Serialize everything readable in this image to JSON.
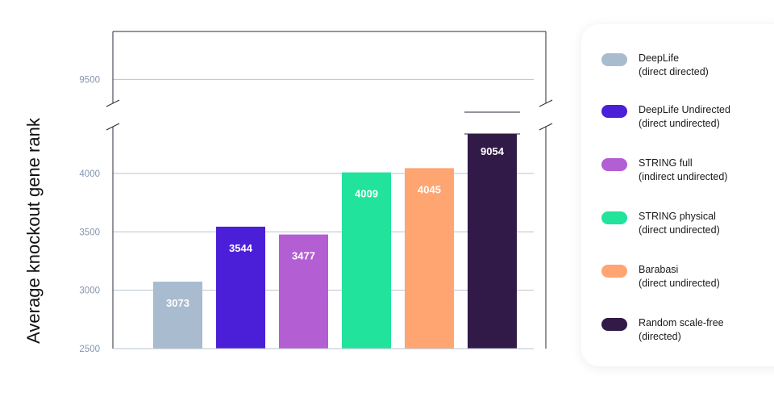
{
  "chart_data": {
    "type": "bar",
    "ylabel": "Average knockout gene rank",
    "y_ticks": [
      2500,
      3000,
      3500,
      4000,
      9500
    ],
    "ylim_lower": [
      2500,
      4400
    ],
    "ylim_upper": [
      9300,
      9900
    ],
    "broken_axis": true,
    "grid": true,
    "legend_position": "right",
    "categories": [
      "DeepLife",
      "DeepLife Undirected",
      "STRING full",
      "STRING physical",
      "Barabasi",
      "Random scale-free"
    ],
    "values": [
      3073,
      3544,
      3477,
      4009,
      4045,
      9054
    ],
    "value_labels": [
      "3073",
      "3544",
      "3477",
      "4009",
      "4045",
      "9054"
    ],
    "colors": [
      "#a9bbcf",
      "#4b1fd8",
      "#b35ed3",
      "#22e39c",
      "#ffa571",
      "#311a48"
    ]
  },
  "legend": [
    {
      "name": "DeepLife",
      "subtitle": "(direct directed)",
      "color": "#a9bbcf"
    },
    {
      "name": "DeepLife Undirected",
      "subtitle": "(direct undirected)",
      "color": "#4b1fd8"
    },
    {
      "name": "STRING full",
      "subtitle": "(indirect undirected)",
      "color": "#b35ed3"
    },
    {
      "name": "STRING physical",
      "subtitle": "(direct undirected)",
      "color": "#22e39c"
    },
    {
      "name": "Barabasi",
      "subtitle": "(direct undirected)",
      "color": "#ffa571"
    },
    {
      "name": "Random scale-free",
      "subtitle": "(directed)",
      "color": "#311a48"
    }
  ]
}
